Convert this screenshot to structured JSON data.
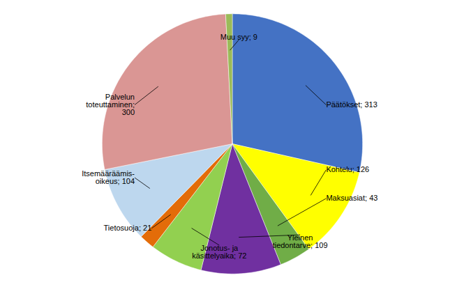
{
  "chart_data": {
    "type": "pie",
    "categories": [
      "Päätökset; 313",
      "Kohtelu; 126",
      "Maksuasiat; 43",
      "Yleinen\ntiedontarve; 109",
      "Jonotus- ja\nkäsittelyaika; 72",
      "Tietosuoja; 21",
      "Itsemääräämis-\noikeus; 104",
      "Palvelun\ntoteuttaminen;\n300",
      "Muu syy; 9"
    ],
    "values": [
      313,
      126,
      43,
      109,
      72,
      21,
      104,
      300,
      9
    ],
    "colors": [
      "#4472C4",
      "#FFFF00",
      "#70AD47",
      "#7030A0",
      "#92D050",
      "#E36C09",
      "#BDD7EE",
      "#DA9694",
      "#9BBB59"
    ],
    "tick_labels": false
  }
}
